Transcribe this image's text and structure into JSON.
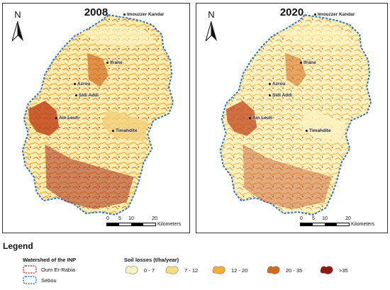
{
  "maps": [
    {
      "year": "2008"
    },
    {
      "year": "2020"
    }
  ],
  "north_label": "N",
  "places": {
    "jmouzzer": "Imouzzer Kandar",
    "ifrane": "Ifrane",
    "azrou": "Azrou",
    "sidi": "Sidi Addi",
    "aincheh": "Ain Leuh",
    "timahdite": "Timahdite"
  },
  "scalebar": {
    "ticks": [
      "0",
      "5",
      "10",
      "20"
    ],
    "units": "Kilometers"
  },
  "legend": {
    "title": "Legend",
    "watershed_title": "Watershed of the INP",
    "watersheds": [
      {
        "label": "Oum Er-Rabia",
        "color": "#e0322c"
      },
      {
        "label": "Sebou",
        "color": "#2b73c2"
      }
    ],
    "soil_title": "Soil losses (t/ha/year)",
    "soil_classes": [
      {
        "label": "0 - 7",
        "color": "#fbf3c0"
      },
      {
        "label": "7 - 12",
        "color": "#f7dc84"
      },
      {
        "label": "12 - 20",
        "color": "#f3ad37"
      },
      {
        "label": "20 - 35",
        "color": "#d06a1e"
      },
      {
        "label": ">35",
        "color": "#8e1a12"
      }
    ]
  }
}
